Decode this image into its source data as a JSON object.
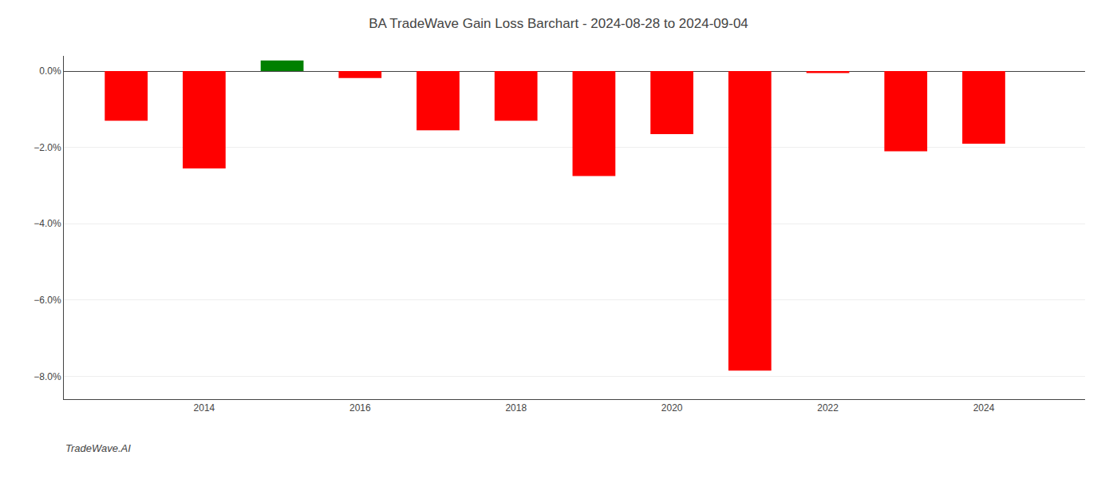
{
  "chart_data": {
    "type": "bar",
    "title": "BA TradeWave Gain Loss Barchart - 2024-08-28 to 2024-09-04",
    "annotations": [
      {
        "text": "TradeWave.AI"
      }
    ],
    "x": [
      2013,
      2014,
      2015,
      2016,
      2017,
      2018,
      2019,
      2020,
      2021,
      2022,
      2023,
      2024
    ],
    "values": [
      -1.3,
      -2.55,
      0.28,
      -0.18,
      -1.55,
      -1.3,
      -2.75,
      -1.65,
      -7.85,
      -0.05,
      -2.1,
      -1.9
    ],
    "colors": [
      "#ff0000",
      "#ff0000",
      "#008000",
      "#ff0000",
      "#ff0000",
      "#ff0000",
      "#ff0000",
      "#ff0000",
      "#ff0000",
      "#ff0000",
      "#ff0000",
      "#ff0000"
    ],
    "xlim": [
      2012.2,
      2025.3
    ],
    "xticks": [
      2014,
      2016,
      2018,
      2020,
      2022,
      2024
    ],
    "ylim": [
      -8.6,
      0.4
    ],
    "yticks": [
      {
        "value": 0.0,
        "label": "0.0%"
      },
      {
        "value": -2.0,
        "label": "−2.0%"
      },
      {
        "value": -4.0,
        "label": "−4.0%"
      },
      {
        "value": -6.0,
        "label": "−6.0%"
      },
      {
        "value": -8.0,
        "label": "−8.0%"
      }
    ],
    "grid": true
  }
}
